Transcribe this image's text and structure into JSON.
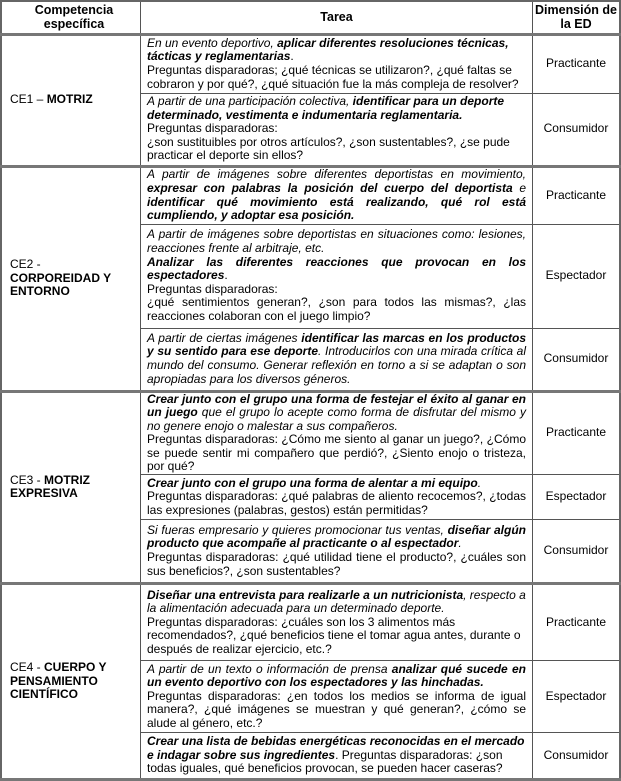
{
  "headers": {
    "competencia": "Competencia específica",
    "tarea": "Tarea",
    "dimension": "Dimensión de la ED"
  },
  "groups": [
    {
      "code": "CE1 – ",
      "name": "MOTRIZ",
      "tasks": [
        {
          "dimension": "Practicante",
          "justify": false,
          "segments": [
            {
              "s": "i",
              "text": "En un evento deportivo, "
            },
            {
              "s": "bi",
              "text": "aplicar diferentes resoluciones técnicas, tácticas y reglamentarias"
            },
            {
              "s": "n",
              "text": "."
            },
            {
              "s": "br"
            },
            {
              "s": "n",
              "text": "Preguntas disparadoras; ¿qué técnicas se utilizaron?, ¿qué faltas se cobraron y por qué?, ¿qué situación fue la más compleja de resolver?"
            }
          ]
        },
        {
          "dimension": "Consumidor",
          "justify": false,
          "segments": [
            {
              "s": "i",
              "text": "A partir de una participación colectiva, "
            },
            {
              "s": "bi",
              "text": "identificar para un deporte determinado, vestimenta e indumentaria reglamentaria."
            },
            {
              "s": "br"
            },
            {
              "s": "n",
              "text": "Preguntas disparadoras:"
            },
            {
              "s": "br"
            },
            {
              "s": "n",
              "text": "¿son sustituibles por otros artículos?, ¿son sustentables?, ¿se pude practicar el deporte sin ellos?"
            }
          ]
        }
      ]
    },
    {
      "code": "CE2 - ",
      "name": "CORPOREIDAD Y ENTORNO",
      "tasks": [
        {
          "dimension": "Practicante",
          "justify": true,
          "segments": [
            {
              "s": "i",
              "text": "A partir de imágenes sobre diferentes deportistas en movimiento, "
            },
            {
              "s": "bi",
              "text": "expresar con palabras la posición del cuerpo del deportista"
            },
            {
              "s": "i",
              "text": " e "
            },
            {
              "s": "bi",
              "text": "identificar qué movimiento está realizando, qué rol está cumpliendo, y adoptar esa posición."
            }
          ]
        },
        {
          "dimension": "Espectador",
          "justify": true,
          "segments": [
            {
              "s": "i",
              "text": "A partir de imágenes sobre deportistas en situaciones como: lesiones, reacciones frente al arbitraje, etc."
            },
            {
              "s": "br"
            },
            {
              "s": "bi",
              "text": "Analizar las diferentes reacciones que provocan en los espectadores"
            },
            {
              "s": "n",
              "text": "."
            },
            {
              "s": "br"
            },
            {
              "s": "n",
              "text": "Preguntas disparadoras:"
            },
            {
              "s": "br"
            },
            {
              "s": "n",
              "text": "¿qué sentimientos generan?, ¿son para todos las mismas?, ¿las reacciones colaboran con el juego limpio?"
            }
          ]
        },
        {
          "dimension": "Consumidor",
          "justify": true,
          "segments": [
            {
              "s": "i",
              "text": "A partir de ciertas imágenes "
            },
            {
              "s": "bi",
              "text": "identificar las marcas en los productos y su sentido para ese deporte"
            },
            {
              "s": "i",
              "text": ". Introducirlos con una mirada crítica al mundo del consumo. Generar reflexión en torno a si se adaptan o son apropiadas para los diversos géneros."
            }
          ]
        }
      ]
    },
    {
      "code": "CE3 - ",
      "name": "MOTRIZ EXPRESIVA",
      "tasks": [
        {
          "dimension": "Practicante",
          "justify": true,
          "segments": [
            {
              "s": "bi",
              "text": "Crear junto con el grupo una forma de festejar el éxito al ganar en un juego"
            },
            {
              "s": "i",
              "text": " que el grupo lo acepte como forma de disfrutar del mismo y no genere enojo o malestar a sus compañeros."
            },
            {
              "s": "br"
            },
            {
              "s": "n",
              "text": "Preguntas disparadoras: ¿Cómo me siento al ganar un juego?, ¿Cómo se puede sentir mi compañero que perdió?, ¿Siento enojo o tristeza, por qué?"
            }
          ]
        },
        {
          "dimension": "Espectador",
          "justify": true,
          "segments": [
            {
              "s": "bi",
              "text": "Crear junto con el grupo una forma de alentar a mi equipo"
            },
            {
              "s": "i",
              "text": "."
            },
            {
              "s": "br"
            },
            {
              "s": "n",
              "text": "Preguntas disparadoras: ¿qué palabras de aliento recocemos?, ¿todas las expresiones (palabras, gestos) están permitidas?"
            }
          ]
        },
        {
          "dimension": "Consumidor",
          "justify": true,
          "segments": [
            {
              "s": "i",
              "text": "Si fueras empresario y quieres promocionar tus ventas, "
            },
            {
              "s": "bi",
              "text": "diseñar algún producto que acompañe al practicante o al espectador"
            },
            {
              "s": "i",
              "text": "."
            },
            {
              "s": "br"
            },
            {
              "s": "n",
              "text": "Preguntas disparadoras: ¿qué utilidad tiene el producto?, ¿cuáles son sus beneficios?, ¿son sustentables?"
            }
          ]
        }
      ]
    },
    {
      "code": "CE4 - ",
      "name": "CUERPO Y PENSAMIENTO CIENTÍFICO",
      "tasks": [
        {
          "dimension": "Practicante",
          "justify": false,
          "segments": [
            {
              "s": "bi",
              "text": "Diseñar una entrevista para realizarle a un nutricionista"
            },
            {
              "s": "i",
              "text": ", respecto a la alimentación adecuada para un determinado deporte."
            },
            {
              "s": "br"
            },
            {
              "s": "n",
              "text": "Preguntas disparadoras: ¿cuáles son los 3 alimentos más recomendados?, ¿qué beneficios tiene el tomar agua antes, durante o después de realizar ejercicio, etc.?"
            }
          ]
        },
        {
          "dimension": "Espectador",
          "justify": true,
          "segments": [
            {
              "s": "i",
              "text": "A partir de un texto o información de prensa "
            },
            {
              "s": "bi",
              "text": "analizar qué sucede en un evento deportivo con los espectadores y las hinchadas."
            },
            {
              "s": "br"
            },
            {
              "s": "n",
              "text": "Preguntas disparadoras: ¿en todos los medios se informa de igual manera?, ¿qué imágenes se muestran y qué generan?, ¿cómo se alude al género, etc.?"
            }
          ]
        },
        {
          "dimension": "Consumidor",
          "justify": false,
          "segments": [
            {
              "s": "bi",
              "text": "Crear una lista de bebidas energéticas reconocidas en el mercado e indagar sobre sus ingredientes"
            },
            {
              "s": "n",
              "text": ". Preguntas disparadoras: ¿son todas iguales, qué beneficios provocan, se pueden hacer caseras?"
            }
          ]
        }
      ]
    }
  ]
}
